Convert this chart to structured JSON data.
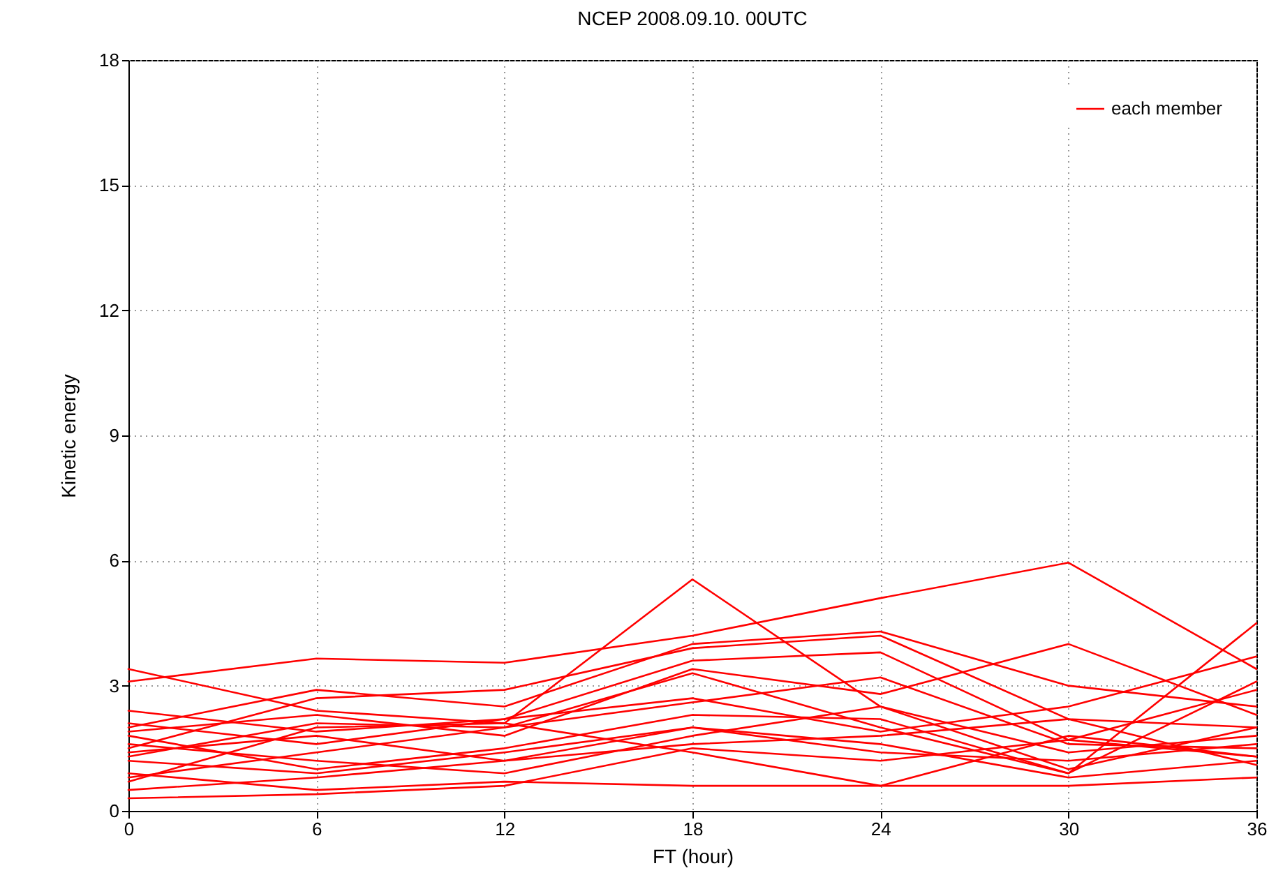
{
  "chart_data": {
    "type": "line",
    "title": "NCEP 2008.09.10. 00UTC",
    "xlabel": "FT (hour)",
    "ylabel": "Kinetic energy",
    "x": [
      0,
      6,
      12,
      18,
      24,
      30,
      36
    ],
    "xlim": [
      0,
      36
    ],
    "xticks": [
      0,
      6,
      12,
      18,
      24,
      30,
      36
    ],
    "ylim": [
      0,
      18
    ],
    "yticks": [
      0,
      3,
      6,
      9,
      12,
      15,
      18
    ],
    "grid": true,
    "legend": "top right",
    "line_style": "solid",
    "marker": "none",
    "series": [
      {
        "name": "each member",
        "color": "#ff0000",
        "values": [
          3.1,
          3.65,
          3.55,
          4.2,
          5.1,
          5.95,
          3.4
        ]
      },
      {
        "color": "#ff0000",
        "values": [
          3.4,
          2.4,
          2.1,
          5.55,
          2.5,
          1.0,
          2.0
        ]
      },
      {
        "color": "#ff0000",
        "values": [
          2.0,
          2.9,
          2.5,
          4.0,
          4.3,
          3.0,
          2.5
        ]
      },
      {
        "color": "#ff0000",
        "values": [
          1.5,
          2.7,
          2.9,
          3.9,
          4.2,
          2.2,
          2.0
        ]
      },
      {
        "color": "#ff0000",
        "values": [
          2.4,
          1.9,
          2.2,
          3.6,
          3.8,
          1.7,
          2.9
        ]
      },
      {
        "color": "#ff0000",
        "values": [
          1.9,
          2.3,
          1.8,
          3.4,
          2.8,
          4.0,
          2.3
        ]
      },
      {
        "color": "#ff0000",
        "values": [
          1.3,
          2.1,
          2.0,
          3.3,
          2.0,
          0.9,
          4.5
        ]
      },
      {
        "color": "#ff0000",
        "values": [
          2.1,
          1.6,
          2.2,
          2.7,
          1.9,
          2.5,
          3.7
        ]
      },
      {
        "color": "#ff0000",
        "values": [
          0.8,
          1.4,
          2.0,
          2.6,
          3.2,
          1.6,
          1.5
        ]
      },
      {
        "color": "#ff0000",
        "values": [
          1.8,
          1.0,
          1.5,
          2.3,
          2.2,
          0.9,
          3.1
        ]
      },
      {
        "color": "#ff0000",
        "values": [
          0.7,
          2.0,
          2.1,
          1.4,
          0.6,
          1.8,
          1.3
        ]
      },
      {
        "color": "#ff0000",
        "values": [
          1.6,
          1.2,
          0.9,
          1.8,
          2.5,
          1.4,
          1.8
        ]
      },
      {
        "color": "#ff0000",
        "values": [
          1.2,
          0.9,
          1.4,
          2.0,
          1.4,
          1.2,
          1.6
        ]
      },
      {
        "color": "#ff0000",
        "values": [
          0.5,
          0.8,
          1.2,
          1.6,
          1.8,
          2.2,
          1.1
        ]
      },
      {
        "color": "#ff0000",
        "values": [
          0.9,
          0.5,
          0.7,
          0.6,
          0.6,
          0.6,
          0.8
        ]
      },
      {
        "color": "#ff0000",
        "values": [
          0.3,
          0.4,
          0.6,
          1.5,
          1.2,
          1.7,
          1.3
        ]
      },
      {
        "color": "#ff0000",
        "values": [
          1.4,
          1.8,
          1.2,
          2.0,
          1.6,
          0.8,
          1.2
        ]
      }
    ]
  }
}
